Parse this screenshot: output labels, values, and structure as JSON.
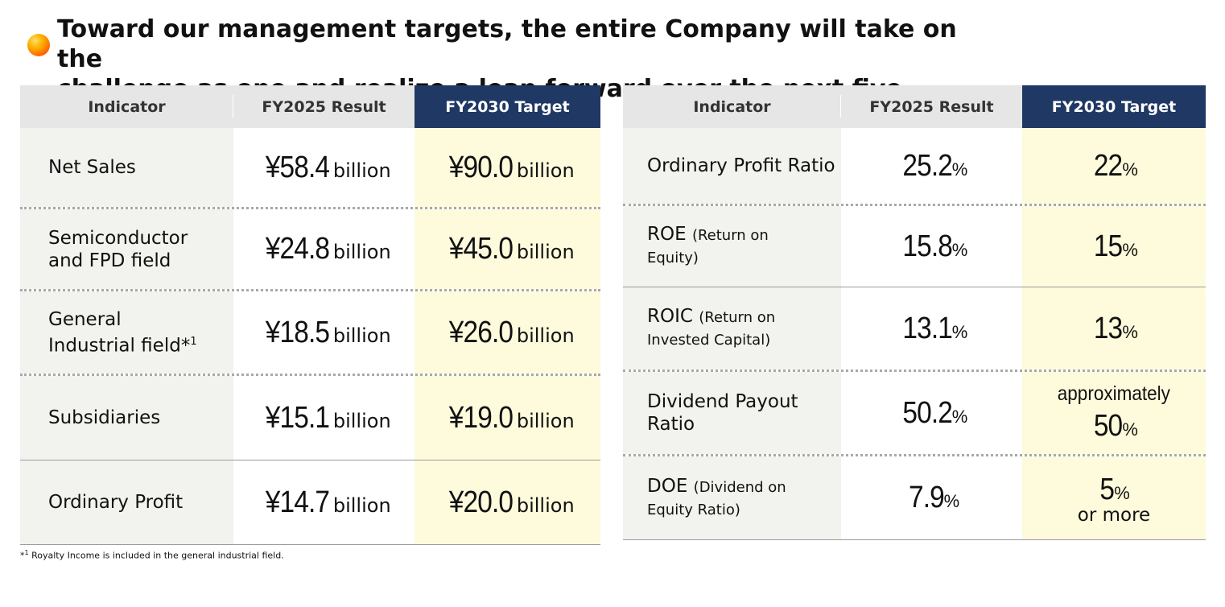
{
  "title": {
    "line1": "Toward our management targets, the entire Company will take on the",
    "line2": "challenge as one and realize a leap forward over the next five years."
  },
  "colors": {
    "header_bg": "#e6e6e6",
    "target_header_bg": "#1f3864",
    "target_cell_bg": "#fdfbdc",
    "indicator_bg": "#f2f2ee",
    "bullet": "#ff8a00"
  },
  "left_table": {
    "headers": [
      "Indicator",
      "FY2025 Result",
      "FY2030 Target"
    ],
    "rows": [
      {
        "indicator": "Net Sales",
        "result_num": "¥58.4",
        "result_unit": "billion",
        "target_num": "¥90.0",
        "target_unit": "billion"
      },
      {
        "indicator_l1": "Semiconductor",
        "indicator_l2": "and FPD field",
        "result_num": "¥24.8",
        "result_unit": "billion",
        "target_num": "¥45.0",
        "target_unit": "billion"
      },
      {
        "indicator_l1": "General",
        "indicator_l2": "Industrial field",
        "indicator_mark": "*",
        "indicator_sup": "1",
        "result_num": "¥18.5",
        "result_unit": "billion",
        "target_num": "¥26.0",
        "target_unit": "billion"
      },
      {
        "indicator": "Subsidiaries",
        "result_num": "¥15.1",
        "result_unit": "billion",
        "target_num": "¥19.0",
        "target_unit": "billion"
      },
      {
        "indicator": "Ordinary Profit",
        "result_num": "¥14.7",
        "result_unit": "billion",
        "target_num": "¥20.0",
        "target_unit": "billion"
      }
    ]
  },
  "right_table": {
    "headers": [
      "Indicator",
      "FY2025 Result",
      "FY2030 Target"
    ],
    "rows": [
      {
        "indicator": "Ordinary Profit Ratio",
        "result_num": "25.2",
        "result_unit": "%",
        "target_num": "22",
        "target_unit": "%"
      },
      {
        "indicator_main": "ROE",
        "indicator_paren_l1": "(Return on",
        "indicator_paren_l2": "Equity)",
        "result_num": "15.8",
        "result_unit": "%",
        "target_num": "15",
        "target_unit": "%"
      },
      {
        "indicator_main": "ROIC",
        "indicator_paren_l1": "(Return on",
        "indicator_paren_l2": "Invested Capital)",
        "result_num": "13.1",
        "result_unit": "%",
        "target_num": "13",
        "target_unit": "%"
      },
      {
        "indicator_l1": "Dividend Payout",
        "indicator_l2": "Ratio",
        "result_num": "50.2",
        "result_unit": "%",
        "target_prefix": "approximately",
        "target_num": "50",
        "target_unit": "%"
      },
      {
        "indicator_main": "DOE",
        "indicator_paren_l1": "(Dividend on",
        "indicator_paren_l2": "Equity Ratio)",
        "result_num": "7.9",
        "result_unit": "%",
        "target_num": "5",
        "target_unit": "%",
        "target_suffix": "or more"
      }
    ]
  },
  "footnote": {
    "mark": "*",
    "sup": "1",
    "text": " Royalty Income is included in the general industrial field."
  }
}
